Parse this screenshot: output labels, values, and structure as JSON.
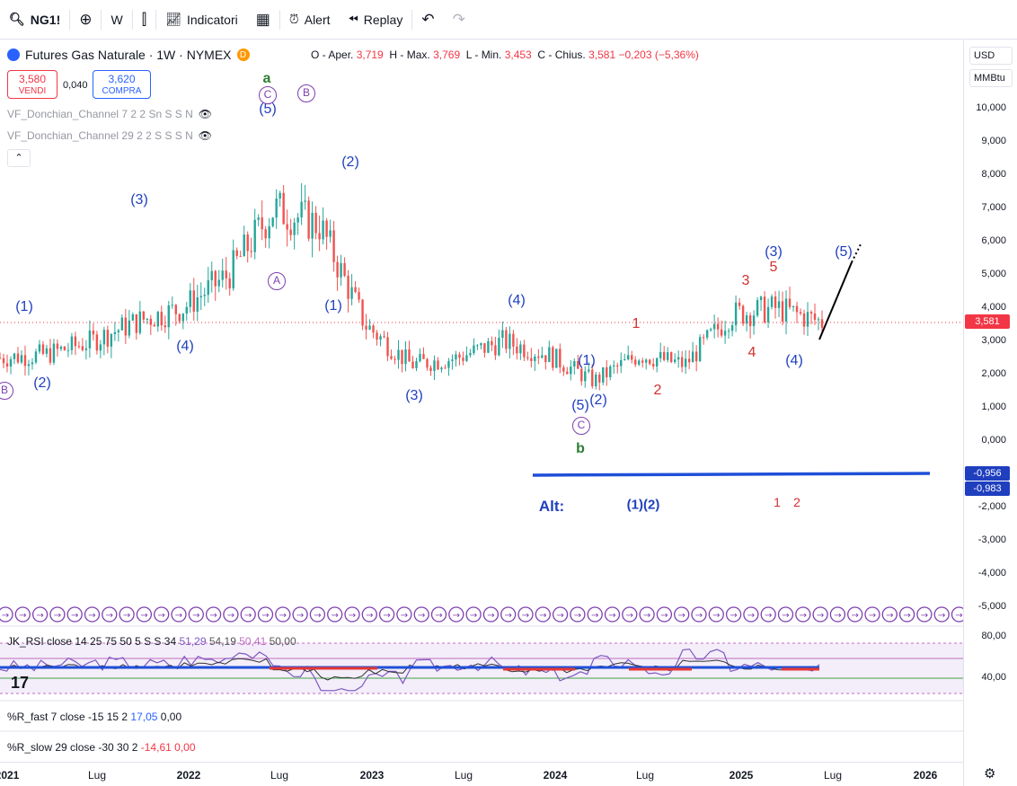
{
  "toolbar": {
    "symbol": "NG1!",
    "interval": "W",
    "indicators_label": "Indicatori",
    "alert_label": "Alert",
    "replay_label": "Replay"
  },
  "legend": {
    "title": "Futures Gas Naturale · 1W · NYMEX",
    "d_badge": "D",
    "open_label": "O - Aper.",
    "open": "3,719",
    "high_label": "H - Max.",
    "high": "3,769",
    "low_label": "L - Min.",
    "low": "3,453",
    "close_label": "C - Chius.",
    "close": "3,581",
    "change": "−0,203 (−5,36%)"
  },
  "trade": {
    "sell_price": "3,580",
    "sell_label": "VENDI",
    "spread": "0,040",
    "buy_price": "3,620",
    "buy_label": "COMPRA"
  },
  "indicators": [
    "VF_Donchian_Channel 7 2 2 Sn S S N",
    "VF_Donchian_Channel 29 2 2 S S S N"
  ],
  "panes": {
    "rsi_label": "JK_RSI close 14 25 75 50 5 S S 34",
    "rsi_v1": "51,29",
    "rsi_v2": "54,19",
    "rsi_v3": "50,41",
    "rsi_v4": "50,00",
    "rfast_label": "%R_fast 7 close -15 15 2",
    "rfast_v1": "17,05",
    "rfast_v2": "0,00",
    "rslow_label": "%R_slow 29 close -30 30 2",
    "rslow_v1": "-14,61",
    "rslow_v2": "0,00"
  },
  "price_axis": {
    "currency": "USD",
    "unit": "MMBtu",
    "labels": [
      "10,000",
      "9,000",
      "8,000",
      "7,000",
      "6,000",
      "5,000",
      "4,000",
      "3,000",
      "2,000",
      "1,000",
      "0,000",
      "-2,000",
      "-3,000",
      "-4,000",
      "-5,000"
    ],
    "values": [
      10,
      9,
      8,
      7,
      6,
      5,
      4,
      3,
      2,
      1,
      0,
      -2,
      -3,
      -4,
      -5
    ],
    "last_price_tag": "3,581",
    "tag1": "-0,956",
    "tag2": "-0,983",
    "rsi_labels": [
      "80,00",
      "40,00"
    ],
    "rsi_values": [
      80,
      40
    ]
  },
  "time_axis": {
    "labels": [
      "2021",
      "Lug",
      "2022",
      "Lug",
      "2023",
      "Lug",
      "2024",
      "Lug",
      "2025",
      "Lug",
      "2026"
    ],
    "bold": [
      true,
      false,
      true,
      false,
      true,
      false,
      true,
      false,
      true,
      false,
      true
    ]
  },
  "annotations": {
    "blue": [
      "(1)",
      "(2)",
      "(3)",
      "(4)",
      "(5)",
      "(2)",
      "(1)",
      "(3)",
      "(4)",
      "(5)",
      "(1)",
      "(2)",
      "(3)",
      "(4)",
      "(5)"
    ],
    "red": [
      "1",
      "2",
      "3",
      "4",
      "5",
      "1",
      "2"
    ],
    "purple_circled": [
      "B",
      "C",
      "B",
      "A",
      "C"
    ],
    "green": [
      "a",
      "b"
    ],
    "alt_label": "Alt:",
    "alt_waves": "(1)(2)"
  },
  "colors": {
    "up": "#26a69a",
    "down": "#ef5350",
    "wave_blue": "#1f3fbf",
    "wave_red": "#d32f2f",
    "wave_purple": "#7e3fb0",
    "wave_green": "#2e7d32",
    "support_line": "#1f4fd8",
    "tag_blue": "#1f3fbf",
    "price_tag": "#f23645"
  },
  "chart_data": {
    "type": "candlestick",
    "title": "Futures Gas Naturale · 1W · NYMEX",
    "ylim": [
      -5,
      10.5
    ],
    "x": [
      "2021-01",
      "2021-04",
      "2021-07",
      "2021-10",
      "2022-01",
      "2022-04",
      "2022-07",
      "2022-10",
      "2023-01",
      "2023-04",
      "2023-07",
      "2023-10",
      "2024-01",
      "2024-04",
      "2024-07",
      "2024-10",
      "2025-01",
      "2025-04",
      "2025-06"
    ],
    "close_approx": [
      2.5,
      2.6,
      3.0,
      3.6,
      4.0,
      5.0,
      7.0,
      6.5,
      3.5,
      2.3,
      2.5,
      3.0,
      2.6,
      1.8,
      2.6,
      2.3,
      3.8,
      4.0,
      3.58
    ],
    "support_level": -0.956,
    "current_close": 3.581
  }
}
